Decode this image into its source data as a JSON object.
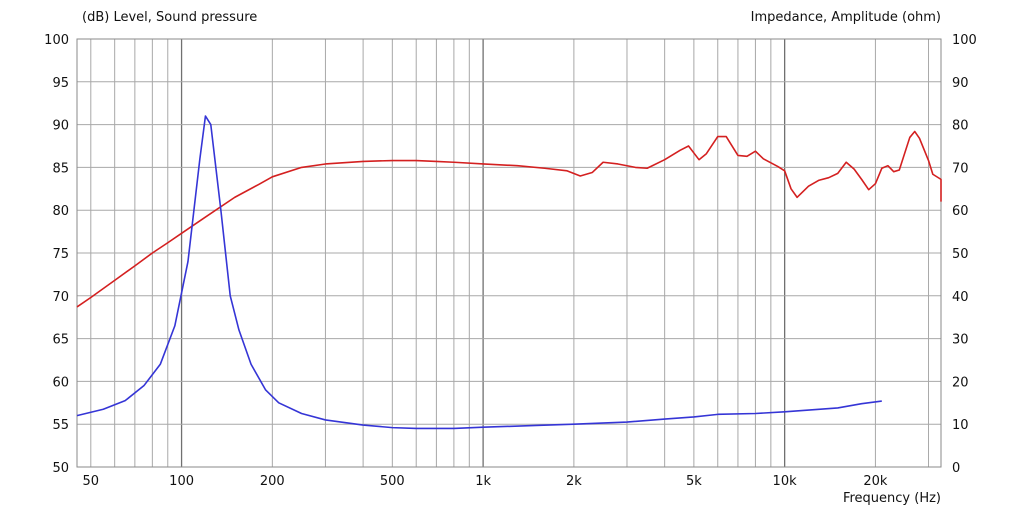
{
  "chart_data": {
    "type": "line",
    "title": "",
    "y_left_label": "(dB)  Level, Sound pressure",
    "y_right_label": "Impedance, Amplitude  (ohm)",
    "xlabel": "Frequency  (Hz)",
    "x_scale": "log",
    "xlim": [
      45,
      33000
    ],
    "ylim_left": [
      50,
      100
    ],
    "ylim_right": [
      0,
      100
    ],
    "y_left_ticks": [
      "100",
      "95",
      "90",
      "85",
      "80",
      "75",
      "70",
      "65",
      "60",
      "55",
      "50"
    ],
    "y_right_ticks": [
      "100",
      "90",
      "80",
      "70",
      "60",
      "50",
      "40",
      "30",
      "20",
      "10",
      "0"
    ],
    "x_tick_labels": [
      {
        "value": 50,
        "label": "50"
      },
      {
        "value": 100,
        "label": "100"
      },
      {
        "value": 200,
        "label": "200"
      },
      {
        "value": 500,
        "label": "500"
      },
      {
        "value": 1000,
        "label": "1k"
      },
      {
        "value": 2000,
        "label": "2k"
      },
      {
        "value": 5000,
        "label": "5k"
      },
      {
        "value": 10000,
        "label": "10k"
      },
      {
        "value": 20000,
        "label": "20k"
      }
    ],
    "grid": true,
    "series": [
      {
        "color": "#d42020",
        "axis": "left",
        "points": [
          [
            45,
            68.7
          ],
          [
            50,
            69.8
          ],
          [
            60,
            71.8
          ],
          [
            70,
            73.5
          ],
          [
            80,
            75.0
          ],
          [
            90,
            76.2
          ],
          [
            100,
            77.3
          ],
          [
            120,
            79.2
          ],
          [
            150,
            81.5
          ],
          [
            180,
            83.0
          ],
          [
            200,
            83.9
          ],
          [
            250,
            85.0
          ],
          [
            300,
            85.4
          ],
          [
            400,
            85.7
          ],
          [
            500,
            85.8
          ],
          [
            600,
            85.8
          ],
          [
            700,
            85.7
          ],
          [
            800,
            85.6
          ],
          [
            1000,
            85.4
          ],
          [
            1300,
            85.2
          ],
          [
            1600,
            84.9
          ],
          [
            1900,
            84.6
          ],
          [
            2100,
            84.0
          ],
          [
            2300,
            84.4
          ],
          [
            2500,
            85.6
          ],
          [
            2800,
            85.4
          ],
          [
            3200,
            85.0
          ],
          [
            3500,
            84.9
          ],
          [
            4000,
            85.9
          ],
          [
            4500,
            87.0
          ],
          [
            4800,
            87.5
          ],
          [
            5200,
            85.9
          ],
          [
            5500,
            86.6
          ],
          [
            6000,
            88.6
          ],
          [
            6400,
            88.6
          ],
          [
            7000,
            86.4
          ],
          [
            7500,
            86.3
          ],
          [
            8000,
            86.9
          ],
          [
            8500,
            86.0
          ],
          [
            9500,
            85.1
          ],
          [
            10000,
            84.6
          ],
          [
            10500,
            82.5
          ],
          [
            11000,
            81.5
          ],
          [
            12000,
            82.8
          ],
          [
            13000,
            83.5
          ],
          [
            14000,
            83.8
          ],
          [
            15000,
            84.3
          ],
          [
            16000,
            85.6
          ],
          [
            17000,
            84.8
          ],
          [
            18000,
            83.6
          ],
          [
            19000,
            82.4
          ],
          [
            20000,
            83.1
          ],
          [
            21000,
            84.9
          ],
          [
            22000,
            85.2
          ],
          [
            23000,
            84.5
          ],
          [
            24000,
            84.7
          ],
          [
            26000,
            88.5
          ],
          [
            27000,
            89.2
          ],
          [
            28000,
            88.4
          ],
          [
            30000,
            85.8
          ],
          [
            31000,
            84.2
          ],
          [
            33000,
            83.6
          ],
          [
            35000,
            81.0
          ]
        ]
      },
      {
        "color": "#3535d6",
        "axis": "right",
        "points": [
          [
            45,
            12.0
          ],
          [
            55,
            13.5
          ],
          [
            65,
            15.5
          ],
          [
            75,
            19.0
          ],
          [
            85,
            24.0
          ],
          [
            95,
            33.0
          ],
          [
            105,
            48.0
          ],
          [
            115,
            72.0
          ],
          [
            120,
            82.0
          ],
          [
            125,
            80.0
          ],
          [
            135,
            60.0
          ],
          [
            145,
            40.0
          ],
          [
            155,
            32.0
          ],
          [
            170,
            24.0
          ],
          [
            190,
            18.0
          ],
          [
            210,
            15.0
          ],
          [
            250,
            12.5
          ],
          [
            300,
            11.0
          ],
          [
            400,
            9.8
          ],
          [
            500,
            9.2
          ],
          [
            600,
            9.0
          ],
          [
            800,
            9.0
          ],
          [
            1000,
            9.3
          ],
          [
            1500,
            9.7
          ],
          [
            2000,
            10.0
          ],
          [
            3000,
            10.5
          ],
          [
            4000,
            11.2
          ],
          [
            5000,
            11.7
          ],
          [
            6000,
            12.3
          ],
          [
            8000,
            12.5
          ],
          [
            10000,
            12.9
          ],
          [
            15000,
            13.8
          ],
          [
            18000,
            14.8
          ],
          [
            21000,
            15.4
          ]
        ]
      }
    ]
  }
}
